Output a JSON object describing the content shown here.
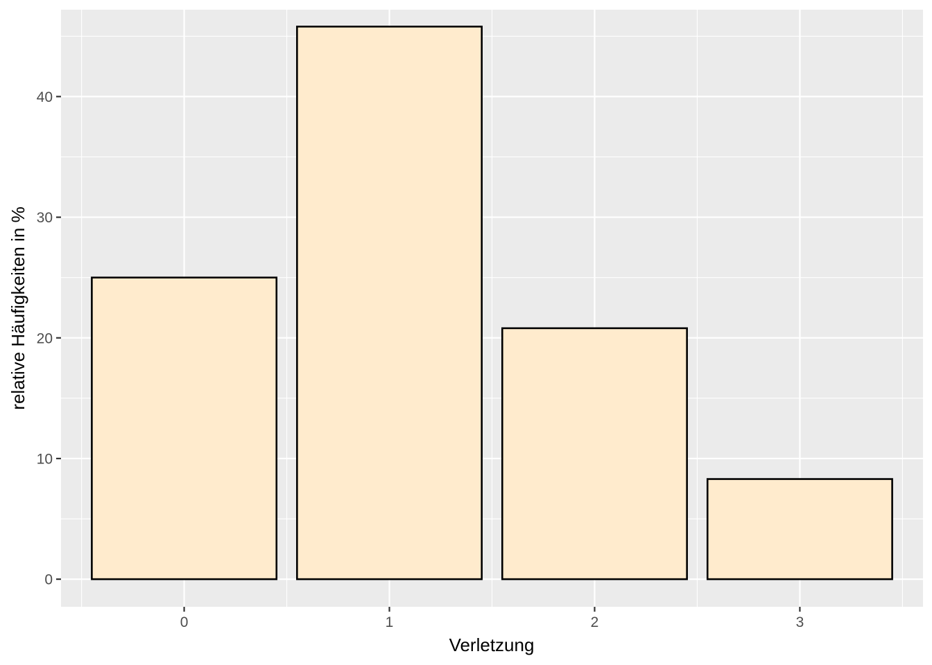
{
  "chart_data": {
    "type": "bar",
    "categories": [
      "0",
      "1",
      "2",
      "3"
    ],
    "values": [
      25.0,
      45.8,
      20.8,
      8.3
    ],
    "xlabel": "Verletzung",
    "ylabel": "relative Häufigkeiten in %",
    "ylim": [
      -2.29,
      47.2
    ],
    "yticks": [
      0,
      10,
      20,
      30,
      40
    ],
    "ytick_labels": [
      "0",
      "10",
      "20",
      "30",
      "40"
    ],
    "grid": true,
    "colors": {
      "panel_background": "#ebebeb",
      "grid_major": "#ffffff",
      "bar_fill": "#ffebcd",
      "bar_stroke": "#000000"
    }
  }
}
